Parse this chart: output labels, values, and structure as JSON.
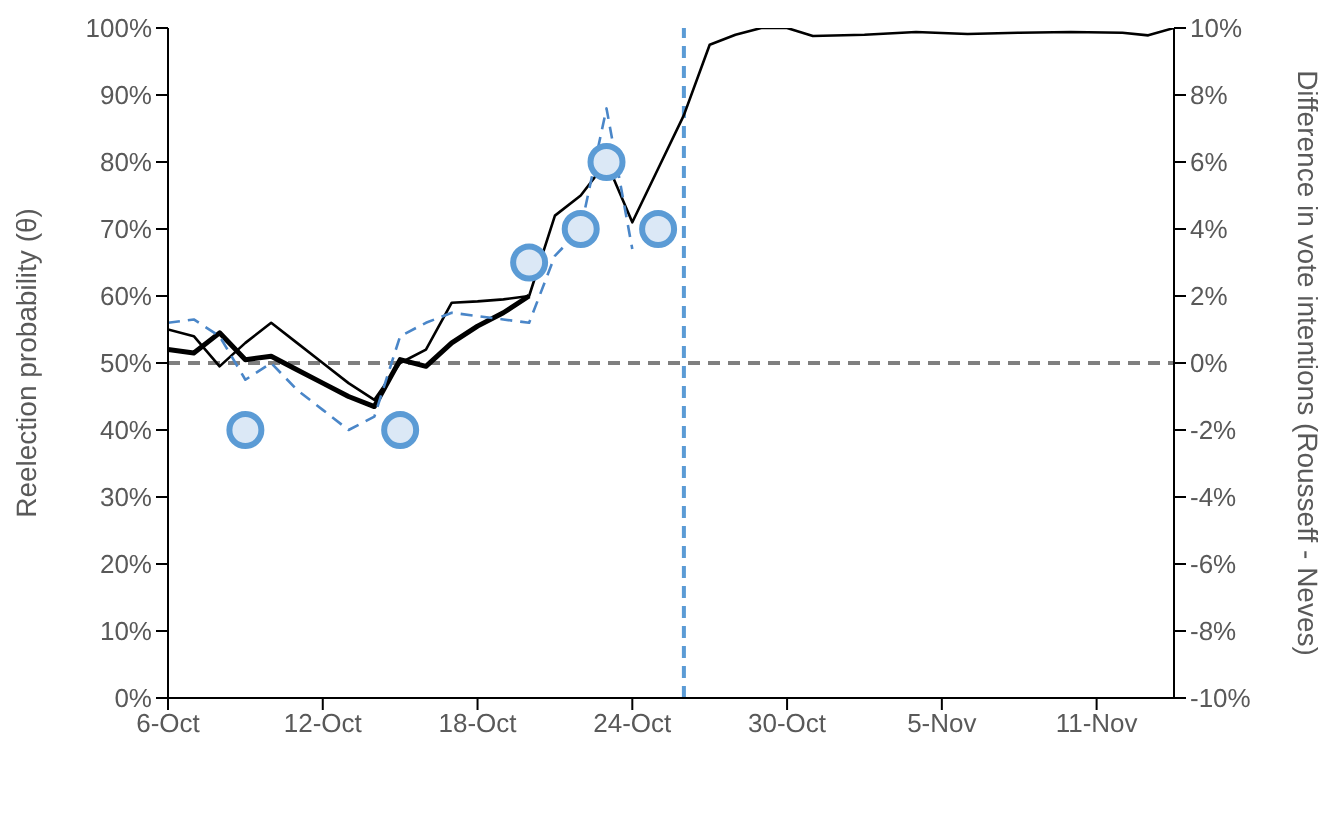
{
  "chart_data": {
    "type": "line",
    "ylabel": "Reelection probability (θ)",
    "y2label": "Difference in vote intentions (Rousseff - Neves)",
    "xlim": [
      "--10-06",
      "--11-14"
    ],
    "xticks": [
      {
        "value": "--10-06",
        "label": "6-Oct"
      },
      {
        "value": "--10-12",
        "label": "12-Oct"
      },
      {
        "value": "--10-18",
        "label": "18-Oct"
      },
      {
        "value": "--10-24",
        "label": "24-Oct"
      },
      {
        "value": "--10-30",
        "label": "30-Oct"
      },
      {
        "value": "--11-05",
        "label": "5-Nov"
      },
      {
        "value": "--11-11",
        "label": "11-Nov"
      }
    ],
    "ylim": [
      0,
      100
    ],
    "yticks": [
      {
        "value": 0,
        "label": "0%"
      },
      {
        "value": 10,
        "label": "10%"
      },
      {
        "value": 20,
        "label": "20%"
      },
      {
        "value": 30,
        "label": "30%"
      },
      {
        "value": 40,
        "label": "40%"
      },
      {
        "value": 50,
        "label": "50%"
      },
      {
        "value": 60,
        "label": "60%"
      },
      {
        "value": 70,
        "label": "70%"
      },
      {
        "value": 80,
        "label": "80%"
      },
      {
        "value": 90,
        "label": "90%"
      },
      {
        "value": 100,
        "label": "100%"
      }
    ],
    "y2lim": [
      -10,
      10
    ],
    "y2ticks": [
      {
        "value": -10,
        "label": "-10%"
      },
      {
        "value": -8,
        "label": "-8%"
      },
      {
        "value": -6,
        "label": "-6%"
      },
      {
        "value": -4,
        "label": "-4%"
      },
      {
        "value": -2,
        "label": "-2%"
      },
      {
        "value": 0,
        "label": "0%"
      },
      {
        "value": 2,
        "label": "2%"
      },
      {
        "value": 4,
        "label": "4%"
      },
      {
        "value": 6,
        "label": "6%"
      },
      {
        "value": 8,
        "label": "8%"
      },
      {
        "value": 10,
        "label": "10%"
      }
    ],
    "grid": false,
    "legend": false,
    "series": [
      {
        "color": "#000000",
        "x": [
          "--10-06",
          "--10-07",
          "--10-08",
          "--10-09",
          "--10-10",
          "--10-11",
          "--10-12",
          "--10-13",
          "--10-14",
          "--10-15",
          "--10-16",
          "--10-17",
          "--10-18",
          "--10-19",
          "--10-20"
        ],
        "values": [
          52,
          51.5,
          54.5,
          50.5,
          51,
          49,
          47,
          45,
          43.5,
          50.5,
          49.5,
          53,
          55.5,
          57.5,
          60
        ]
      },
      {
        "color": "#000000",
        "x": [
          "--10-06",
          "--10-07",
          "--10-08",
          "--10-09",
          "--10-10",
          "--10-11",
          "--10-12",
          "--10-13",
          "--10-14",
          "--10-15",
          "--10-16",
          "--10-17",
          "--10-18",
          "--10-19",
          "--10-20",
          "--10-21",
          "--10-22",
          "--10-23",
          "--10-24",
          "--10-25",
          "--10-26",
          "--10-27",
          "--10-28",
          "--10-29",
          "--10-30",
          "--10-31",
          "--11-02",
          "--11-04",
          "--11-06",
          "--11-08",
          "--11-10",
          "--11-12",
          "--11-13",
          "--11-14"
        ],
        "values": [
          55,
          54,
          49.5,
          53,
          56,
          53,
          50,
          47,
          44.5,
          50,
          52,
          59,
          59.2,
          59.5,
          60,
          72,
          75,
          80,
          71,
          79,
          87,
          97.5,
          99,
          100,
          100,
          98.8,
          99,
          99.4,
          99.1,
          99.3,
          99.4,
          99.3,
          98.9,
          100
        ]
      },
      {
        "color": "#4a86c8",
        "axis": "y2",
        "line_style": "dashed",
        "x": [
          "--10-06",
          "--10-07",
          "--10-08",
          "--10-09",
          "--10-10",
          "--10-11",
          "--10-12",
          "--10-13",
          "--10-14",
          "--10-15",
          "--10-16",
          "--10-17",
          "--10-18",
          "--10-19",
          "--10-20",
          "--10-21",
          "--10-22",
          "--10-23",
          "--10-24"
        ],
        "values": [
          1.2,
          1.3,
          0.8,
          -0.5,
          0,
          -0.8,
          -1.4,
          -2,
          -1.6,
          0.8,
          1.2,
          1.5,
          1.4,
          1.3,
          1.2,
          3.2,
          4,
          7.6,
          3.4
        ]
      },
      {
        "type": "scatter",
        "color": "#5b9bd5",
        "axis": "y2",
        "marker": "circle",
        "x": [
          "--10-09",
          "--10-15",
          "--10-20",
          "--10-22",
          "--10-23",
          "--10-25"
        ],
        "values": [
          -2,
          -2,
          3,
          4,
          6,
          4
        ]
      }
    ],
    "ref_lines": [
      {
        "axis": "y",
        "value": 50,
        "color": "#7f7f7f",
        "line_style": "dashed"
      },
      {
        "axis": "x",
        "value": "--10-26",
        "color": "#5b9bd5",
        "line_style": "dashed"
      }
    ]
  }
}
